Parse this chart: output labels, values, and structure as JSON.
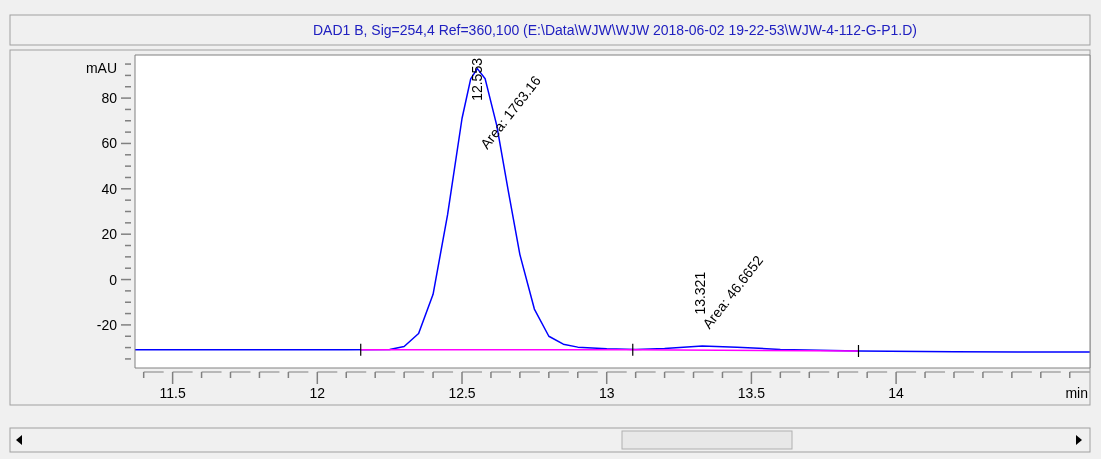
{
  "chart_data": {
    "type": "line",
    "title": "DAD1 B, Sig=254,4 Ref=360,100 (E:\\Data\\WJW\\WJW 2018-06-02 19-22-53\\WJW-4-112-G-P1.D)",
    "ylabel": "mAU",
    "xlabel": "min",
    "x": [
      11.37,
      11.8,
      12.1,
      12.25,
      12.3,
      12.35,
      12.4,
      12.45,
      12.5,
      12.53,
      12.553,
      12.58,
      12.62,
      12.66,
      12.7,
      12.75,
      12.8,
      12.85,
      12.9,
      13.0,
      13.1,
      13.2,
      13.33,
      13.45,
      13.6,
      13.87,
      14.2,
      14.67
    ],
    "series": [
      {
        "color": "#0000ff",
        "values": [
          -31,
          -31,
          -31,
          -30.8,
          -29.5,
          -23.8,
          -6.5,
          28.5,
          71,
          88.5,
          93,
          88.5,
          68,
          39,
          11,
          -13,
          -25,
          -28.5,
          -29.8,
          -30.5,
          -30.8,
          -30.4,
          -29.3,
          -29.8,
          -30.8,
          -31.5,
          -31.8,
          -32
        ]
      },
      {
        "color": "#ff00ff",
        "x": [
          12.15,
          13.09,
          13.87
        ],
        "values": [
          -31,
          -31,
          -31.5
        ]
      }
    ],
    "xlim": [
      11.37,
      14.67
    ],
    "ylim": [
      -39,
      99
    ],
    "xticks": [
      {
        "value": 11.4,
        "label": null
      },
      {
        "value": 11.5,
        "label": "11.5"
      },
      {
        "value": 11.6,
        "label": null
      },
      {
        "value": 11.7,
        "label": null
      },
      {
        "value": 11.8,
        "label": null
      },
      {
        "value": 11.9,
        "label": null
      },
      12,
      {
        "value": 12.1,
        "label": null
      },
      {
        "value": 12.2,
        "label": null
      },
      {
        "value": 12.3,
        "label": null
      },
      {
        "value": 12.4,
        "label": null
      },
      {
        "value": 12.5,
        "label": "12.5"
      },
      {
        "value": 12.6,
        "label": null
      },
      {
        "value": 12.7,
        "label": null
      },
      {
        "value": 12.8,
        "label": null
      },
      {
        "value": 12.9,
        "label": null
      },
      13,
      {
        "value": 13.1,
        "label": null
      },
      {
        "value": 13.2,
        "label": null
      },
      {
        "value": 13.3,
        "label": null
      },
      {
        "value": 13.4,
        "label": null
      },
      {
        "value": 13.5,
        "label": "13.5"
      },
      {
        "value": 13.6,
        "label": null
      },
      {
        "value": 13.7,
        "label": null
      },
      {
        "value": 13.8,
        "label": null
      },
      {
        "value": 13.9,
        "label": null
      },
      14,
      {
        "value": 14.1,
        "label": null
      },
      {
        "value": 14.2,
        "label": null
      },
      {
        "value": 14.3,
        "label": null
      },
      {
        "value": 14.4,
        "label": null
      },
      {
        "value": 14.5,
        "label": null
      },
      {
        "value": 14.6,
        "label": null
      }
    ],
    "yticks": [
      {
        "value": -35,
        "label": null
      },
      {
        "value": -30,
        "label": null
      },
      {
        "value": -25,
        "label": null
      },
      -20,
      {
        "value": -15,
        "label": null
      },
      {
        "value": -10,
        "label": null
      },
      {
        "value": -5,
        "label": null
      },
      0,
      {
        "value": 5,
        "label": null
      },
      {
        "value": 10,
        "label": null
      },
      {
        "value": 15,
        "label": null
      },
      20,
      {
        "value": 25,
        "label": null
      },
      {
        "value": 30,
        "label": null
      },
      {
        "value": 35,
        "label": null
      },
      40,
      {
        "value": 45,
        "label": null
      },
      {
        "value": 50,
        "label": null
      },
      {
        "value": 55,
        "label": null
      },
      60,
      {
        "value": 65,
        "label": null
      },
      {
        "value": 70,
        "label": null
      },
      {
        "value": 75,
        "label": null
      },
      80,
      {
        "value": 85,
        "label": null
      },
      {
        "value": 90,
        "label": null
      },
      {
        "value": 95,
        "label": null
      }
    ],
    "annotations": [
      {
        "text": "12.553",
        "x": 12.553,
        "y": 93
      },
      "Area: 1763.16",
      {
        "text": "13.321",
        "x": 13.321,
        "y": -27
      },
      "Area: 46.6652"
    ],
    "grid": false,
    "marker": "none",
    "line_style": "solid"
  }
}
